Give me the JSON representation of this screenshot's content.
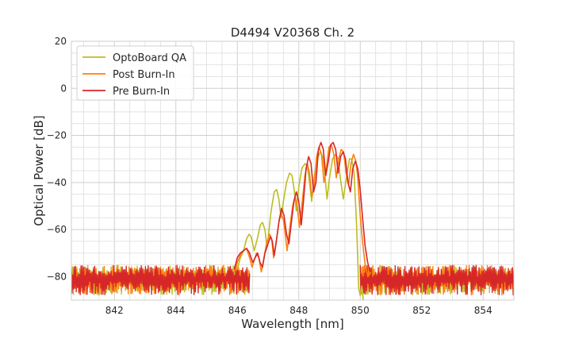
{
  "chart_data": {
    "type": "line",
    "title": "D4494 V20368 Ch. 2",
    "xlabel": "Wavelength [nm]",
    "ylabel": "Optical Power [dB]",
    "xlim": [
      840.6,
      855.0
    ],
    "ylim": [
      -90,
      20
    ],
    "xticks": [
      842,
      844,
      846,
      848,
      850,
      852,
      854
    ],
    "yticks": [
      20,
      0,
      -20,
      -40,
      -60,
      -80
    ],
    "xtick_labels": [
      "842",
      "844",
      "846",
      "848",
      "850",
      "852",
      "854"
    ],
    "ytick_labels": [
      "20",
      "0",
      "−20",
      "−40",
      "−60",
      "−80"
    ],
    "grid": true,
    "legend_position": "top-left",
    "noise_floor": {
      "x_range_left": [
        840.6,
        846.4
      ],
      "x_range_right": [
        850.0,
        855.0
      ],
      "top": -75,
      "bottom": -90
    },
    "series": [
      {
        "name": "OptoBoard QA",
        "color": "#bcbd22",
        "points": [
          [
            846.0,
            -77
          ],
          [
            846.1,
            -72
          ],
          [
            846.2,
            -69
          ],
          [
            846.3,
            -64
          ],
          [
            846.38,
            -62
          ],
          [
            846.45,
            -63
          ],
          [
            846.5,
            -66
          ],
          [
            846.55,
            -69
          ],
          [
            846.65,
            -64
          ],
          [
            846.75,
            -58
          ],
          [
            846.82,
            -57
          ],
          [
            846.9,
            -60
          ],
          [
            846.95,
            -66
          ],
          [
            847.0,
            -64
          ],
          [
            847.1,
            -52
          ],
          [
            847.2,
            -44
          ],
          [
            847.28,
            -43
          ],
          [
            847.35,
            -47
          ],
          [
            847.42,
            -55
          ],
          [
            847.5,
            -48
          ],
          [
            847.6,
            -40
          ],
          [
            847.7,
            -36
          ],
          [
            847.78,
            -37
          ],
          [
            847.85,
            -43
          ],
          [
            847.92,
            -52
          ],
          [
            848.0,
            -42
          ],
          [
            848.1,
            -34
          ],
          [
            848.2,
            -32
          ],
          [
            848.28,
            -33
          ],
          [
            848.35,
            -40
          ],
          [
            848.42,
            -48
          ],
          [
            848.5,
            -38
          ],
          [
            848.6,
            -30
          ],
          [
            848.7,
            -27
          ],
          [
            848.78,
            -29
          ],
          [
            848.85,
            -37
          ],
          [
            848.92,
            -47
          ],
          [
            849.0,
            -38
          ],
          [
            849.1,
            -30
          ],
          [
            849.2,
            -28
          ],
          [
            849.28,
            -30
          ],
          [
            849.35,
            -38
          ],
          [
            849.45,
            -47
          ],
          [
            849.55,
            -38
          ],
          [
            849.65,
            -30
          ],
          [
            849.72,
            -30
          ],
          [
            849.8,
            -36
          ],
          [
            849.88,
            -58
          ],
          [
            849.92,
            -72
          ],
          [
            849.95,
            -85
          ],
          [
            850.0,
            -88
          ],
          [
            850.05,
            -84
          ],
          [
            850.1,
            -90
          ]
        ]
      },
      {
        "name": "Post Burn-In",
        "color": "#ff7f0e",
        "points": [
          [
            845.9,
            -78
          ],
          [
            846.0,
            -74
          ],
          [
            846.1,
            -71
          ],
          [
            846.2,
            -69
          ],
          [
            846.3,
            -68
          ],
          [
            846.4,
            -72
          ],
          [
            846.48,
            -76
          ],
          [
            846.55,
            -73
          ],
          [
            846.62,
            -70
          ],
          [
            846.7,
            -72
          ],
          [
            846.78,
            -78
          ],
          [
            846.85,
            -73
          ],
          [
            846.95,
            -66
          ],
          [
            847.05,
            -62
          ],
          [
            847.12,
            -64
          ],
          [
            847.18,
            -72
          ],
          [
            847.26,
            -66
          ],
          [
            847.35,
            -57
          ],
          [
            847.42,
            -53
          ],
          [
            847.5,
            -56
          ],
          [
            847.56,
            -62
          ],
          [
            847.62,
            -69
          ],
          [
            847.7,
            -60
          ],
          [
            847.8,
            -50
          ],
          [
            847.88,
            -46
          ],
          [
            847.95,
            -50
          ],
          [
            848.02,
            -59
          ],
          [
            848.1,
            -50
          ],
          [
            848.2,
            -37
          ],
          [
            848.28,
            -32
          ],
          [
            848.35,
            -36
          ],
          [
            848.42,
            -46
          ],
          [
            848.5,
            -42
          ],
          [
            848.58,
            -29
          ],
          [
            848.66,
            -25
          ],
          [
            848.74,
            -28
          ],
          [
            848.82,
            -40
          ],
          [
            848.9,
            -34
          ],
          [
            848.98,
            -25
          ],
          [
            849.06,
            -24
          ],
          [
            849.14,
            -28
          ],
          [
            849.22,
            -38
          ],
          [
            849.3,
            -30
          ],
          [
            849.38,
            -26
          ],
          [
            849.46,
            -27
          ],
          [
            849.54,
            -36
          ],
          [
            849.62,
            -41
          ],
          [
            849.7,
            -32
          ],
          [
            849.78,
            -28
          ],
          [
            849.86,
            -31
          ],
          [
            849.92,
            -38
          ],
          [
            850.0,
            -54
          ],
          [
            850.08,
            -66
          ],
          [
            850.15,
            -74
          ],
          [
            850.25,
            -80
          ],
          [
            850.35,
            -78
          ]
        ]
      },
      {
        "name": "Pre Burn-In",
        "color": "#d62728",
        "points": [
          [
            845.9,
            -77
          ],
          [
            846.0,
            -72
          ],
          [
            846.1,
            -70
          ],
          [
            846.2,
            -69
          ],
          [
            846.3,
            -68
          ],
          [
            846.4,
            -70
          ],
          [
            846.5,
            -74
          ],
          [
            846.58,
            -72
          ],
          [
            846.66,
            -70
          ],
          [
            846.74,
            -74
          ],
          [
            846.82,
            -76
          ],
          [
            846.9,
            -70
          ],
          [
            847.0,
            -66
          ],
          [
            847.08,
            -63
          ],
          [
            847.14,
            -65
          ],
          [
            847.2,
            -71
          ],
          [
            847.28,
            -64
          ],
          [
            847.36,
            -56
          ],
          [
            847.44,
            -51
          ],
          [
            847.52,
            -54
          ],
          [
            847.6,
            -62
          ],
          [
            847.68,
            -66
          ],
          [
            847.76,
            -57
          ],
          [
            847.84,
            -48
          ],
          [
            847.92,
            -44
          ],
          [
            848.0,
            -48
          ],
          [
            848.08,
            -58
          ],
          [
            848.16,
            -47
          ],
          [
            848.24,
            -34
          ],
          [
            848.32,
            -29
          ],
          [
            848.4,
            -32
          ],
          [
            848.48,
            -44
          ],
          [
            848.56,
            -40
          ],
          [
            848.64,
            -26
          ],
          [
            848.72,
            -23
          ],
          [
            848.8,
            -26
          ],
          [
            848.88,
            -37
          ],
          [
            848.96,
            -31
          ],
          [
            849.04,
            -24
          ],
          [
            849.12,
            -23
          ],
          [
            849.2,
            -26
          ],
          [
            849.28,
            -36
          ],
          [
            849.36,
            -29
          ],
          [
            849.44,
            -27
          ],
          [
            849.52,
            -30
          ],
          [
            849.6,
            -40
          ],
          [
            849.68,
            -44
          ],
          [
            849.76,
            -34
          ],
          [
            849.84,
            -31
          ],
          [
            849.92,
            -34
          ],
          [
            850.0,
            -43
          ],
          [
            850.08,
            -56
          ],
          [
            850.16,
            -67
          ],
          [
            850.24,
            -74
          ],
          [
            850.32,
            -78
          ]
        ]
      }
    ]
  }
}
